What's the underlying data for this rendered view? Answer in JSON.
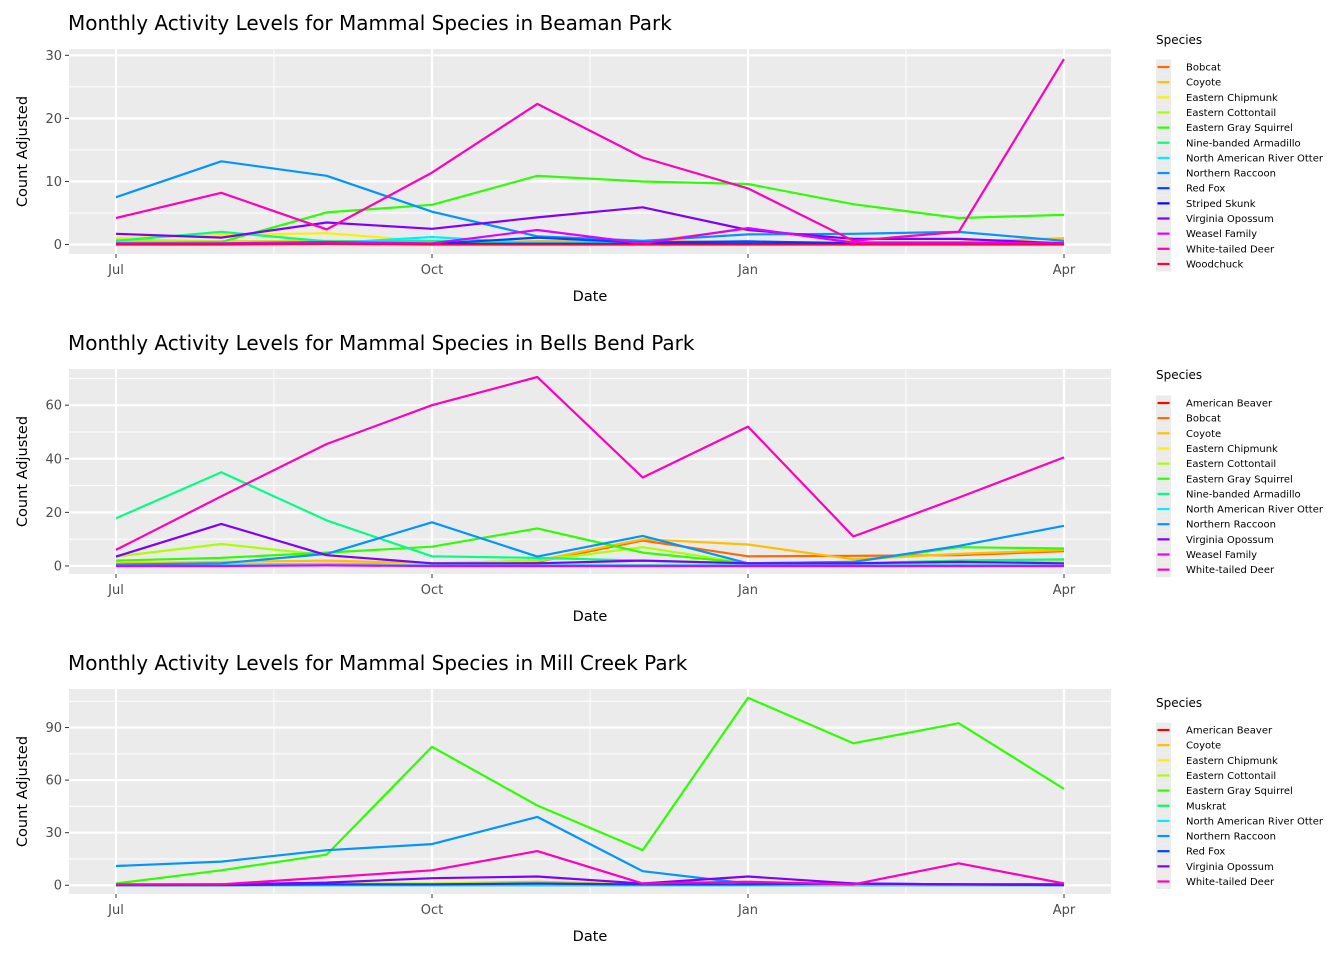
{
  "chart_data": [
    {
      "type": "line",
      "title": "Monthly Activity Levels for Mammal Species in Beaman Park",
      "xlabel": "Date",
      "ylabel": "Count Adjusted",
      "x": [
        "Jul",
        "Aug",
        "Sep",
        "Oct",
        "Nov",
        "Dec",
        "Jan",
        "Feb",
        "Mar",
        "Apr"
      ],
      "x_ticks": [
        "Jul",
        "Oct",
        "Jan",
        "Apr"
      ],
      "ylim": [
        -1.5,
        31
      ],
      "y_ticks": [
        0,
        10,
        20,
        30
      ],
      "legend_title": "Species",
      "legend_position": "right",
      "series": [
        {
          "name": "Bobcat",
          "color": "#ff6a00",
          "values": [
            0.3,
            0.3,
            0.3,
            0.3,
            0.5,
            0.5,
            0.4,
            0.3,
            0.3,
            0.3
          ]
        },
        {
          "name": "Coyote",
          "color": "#ffbf00",
          "values": [
            0.5,
            0.5,
            0.6,
            0.4,
            0.5,
            0.4,
            2.5,
            0.4,
            0.4,
            1.0
          ]
        },
        {
          "name": "Eastern Chipmunk",
          "color": "#ffee00",
          "values": [
            1.0,
            1.5,
            1.8,
            0.5,
            0.3,
            0.2,
            0.2,
            0.3,
            0.3,
            0.3
          ]
        },
        {
          "name": "Eastern Cottontail",
          "color": "#aaff00",
          "values": [
            0.8,
            0.5,
            0.5,
            0.4,
            0.3,
            0.3,
            0.3,
            0.3,
            0.3,
            0.3
          ]
        },
        {
          "name": "Eastern Gray Squirrel",
          "color": "#2cff00",
          "values": [
            0.2,
            0.4,
            5.1,
            6.3,
            10.9,
            10.0,
            9.6,
            6.4,
            4.2,
            4.7
          ]
        },
        {
          "name": "Nine-banded Armadillo",
          "color": "#00ff84",
          "values": [
            0.6,
            2.0,
            0.5,
            0.6,
            0.3,
            0.3,
            0.3,
            0.3,
            0.3,
            0.3
          ]
        },
        {
          "name": "North American River Otter",
          "color": "#00eeff",
          "values": [
            0.2,
            0.2,
            0.2,
            1.2,
            0.2,
            0.2,
            0.2,
            0.2,
            0.2,
            0.2
          ]
        },
        {
          "name": "Northern Raccoon",
          "color": "#0095ff",
          "values": [
            7.5,
            13.2,
            10.9,
            5.2,
            1.3,
            0.6,
            1.6,
            1.7,
            2.0,
            0.6
          ]
        },
        {
          "name": "Red Fox",
          "color": "#0044ff",
          "values": [
            0.1,
            0.1,
            0.1,
            0.1,
            1.1,
            0.3,
            0.5,
            0.2,
            0.2,
            0.1
          ]
        },
        {
          "name": "Striped Skunk",
          "color": "#1100ff",
          "values": [
            0.1,
            0.1,
            0.1,
            0.1,
            0.1,
            0.1,
            0.1,
            0.1,
            0.1,
            0.1
          ]
        },
        {
          "name": "Virginia Opossum",
          "color": "#8000ff",
          "values": [
            1.7,
            1.1,
            3.5,
            2.5,
            4.3,
            5.9,
            2.3,
            0.9,
            0.9,
            0.2
          ]
        },
        {
          "name": "Weasel Family",
          "color": "#e100ff",
          "values": [
            0.2,
            0.2,
            0.4,
            0.2,
            2.3,
            0.2,
            2.6,
            0.3,
            0.3,
            0.2
          ]
        },
        {
          "name": "White-tailed Deer",
          "color": "#ff00bb",
          "values": [
            4.2,
            8.2,
            2.4,
            11.4,
            22.3,
            13.8,
            8.9,
            0.6,
            2.0,
            29.4
          ]
        },
        {
          "name": "Woodchuck",
          "color": "#ff003c",
          "values": [
            0.0,
            0.0,
            0.1,
            0.0,
            0.0,
            0.0,
            0.0,
            0.0,
            0.0,
            0.0
          ]
        }
      ]
    },
    {
      "type": "line",
      "title": "Monthly Activity Levels for Mammal Species in Bells Bend Park",
      "xlabel": "Date",
      "ylabel": "Count Adjusted",
      "x": [
        "Jul",
        "Aug",
        "Sep",
        "Oct",
        "Nov",
        "Dec",
        "Jan",
        "Feb",
        "Mar",
        "Apr"
      ],
      "x_ticks": [
        "Jul",
        "Oct",
        "Jan",
        "Apr"
      ],
      "ylim": [
        -3,
        73.5
      ],
      "y_ticks": [
        0,
        20,
        40,
        60
      ],
      "legend_title": "Species",
      "legend_position": "right",
      "series": [
        {
          "name": "American Beaver",
          "color": "#ff0000",
          "values": [
            0.2,
            0.2,
            0.2,
            0.2,
            0.3,
            0.2,
            0.2,
            0.2,
            0.2,
            0.2
          ]
        },
        {
          "name": "Bobcat",
          "color": "#ff6a00",
          "values": [
            0.5,
            0.6,
            0.8,
            0.6,
            1.5,
            9.5,
            3.6,
            3.8,
            4.0,
            5.5
          ]
        },
        {
          "name": "Coyote",
          "color": "#ffbf00",
          "values": [
            1.0,
            1.5,
            2.0,
            1.0,
            2.0,
            10.0,
            8.0,
            2.5,
            4.5,
            6.0
          ]
        },
        {
          "name": "Eastern Chipmunk",
          "color": "#ffee00",
          "values": [
            0.5,
            0.5,
            0.5,
            0.5,
            0.5,
            0.5,
            0.5,
            0.5,
            0.5,
            0.5
          ]
        },
        {
          "name": "Eastern Cottontail",
          "color": "#aaff00",
          "values": [
            3.5,
            8.2,
            4.0,
            1.0,
            2.0,
            7.0,
            1.0,
            0.8,
            1.0,
            2.0
          ]
        },
        {
          "name": "Eastern Gray Squirrel",
          "color": "#2cff00",
          "values": [
            2.0,
            3.0,
            5.0,
            7.2,
            14.0,
            5.0,
            1.0,
            1.5,
            7.0,
            6.5
          ]
        },
        {
          "name": "Nine-banded Armadillo",
          "color": "#00ff84",
          "values": [
            17.8,
            35.0,
            17.0,
            3.6,
            3.0,
            2.0,
            1.0,
            1.0,
            2.0,
            2.5
          ]
        },
        {
          "name": "North American River Otter",
          "color": "#00eeff",
          "values": [
            0.3,
            0.3,
            0.3,
            0.3,
            0.3,
            0.3,
            0.3,
            0.3,
            0.3,
            0.3
          ]
        },
        {
          "name": "Northern Raccoon",
          "color": "#0095ff",
          "values": [
            0.5,
            1.0,
            4.5,
            16.3,
            3.5,
            11.2,
            1.0,
            1.5,
            7.5,
            15.0
          ]
        },
        {
          "name": "Virginia Opossum",
          "color": "#8000ff",
          "values": [
            3.5,
            15.7,
            4.0,
            1.0,
            1.0,
            2.0,
            1.0,
            1.0,
            1.5,
            1.0
          ]
        },
        {
          "name": "Weasel Family",
          "color": "#e100ff",
          "values": [
            0.0,
            0.0,
            0.2,
            0.0,
            0.0,
            0.0,
            0.0,
            0.0,
            0.0,
            0.0
          ]
        },
        {
          "name": "White-tailed Deer",
          "color": "#ff00bb",
          "values": [
            6.0,
            26.0,
            45.5,
            60.0,
            70.5,
            33.0,
            52.0,
            11.0,
            25.5,
            40.5
          ]
        }
      ]
    },
    {
      "type": "line",
      "title": "Monthly Activity Levels for Mammal Species in Mill Creek Park",
      "xlabel": "Date",
      "ylabel": "Count Adjusted",
      "x": [
        "Jul",
        "Aug",
        "Sep",
        "Oct",
        "Nov",
        "Dec",
        "Jan",
        "Feb",
        "Mar",
        "Apr"
      ],
      "x_ticks": [
        "Jul",
        "Oct",
        "Jan",
        "Apr"
      ],
      "ylim": [
        -5,
        112
      ],
      "y_ticks": [
        0,
        30,
        60,
        90
      ],
      "legend_title": "Species",
      "legend_position": "right",
      "series": [
        {
          "name": "American Beaver",
          "color": "#ff0000",
          "values": [
            0.0,
            0.0,
            0.0,
            0.0,
            0.0,
            0.0,
            0.0,
            0.0,
            0.0,
            0.0
          ]
        },
        {
          "name": "Coyote",
          "color": "#ffbf00",
          "values": [
            0.5,
            0.5,
            1.0,
            1.0,
            2.0,
            0.5,
            0.5,
            0.5,
            0.5,
            0.5
          ]
        },
        {
          "name": "Eastern Chipmunk",
          "color": "#ffee00",
          "values": [
            0.3,
            0.3,
            0.5,
            0.5,
            0.5,
            0.3,
            0.3,
            0.3,
            0.3,
            0.3
          ]
        },
        {
          "name": "Eastern Cottontail",
          "color": "#aaff00",
          "values": [
            0.5,
            0.5,
            1.0,
            1.0,
            1.0,
            0.5,
            0.5,
            0.5,
            0.5,
            0.5
          ]
        },
        {
          "name": "Eastern Gray Squirrel",
          "color": "#2cff00",
          "values": [
            1.0,
            8.5,
            17.5,
            79.0,
            45.5,
            20.0,
            107.0,
            81.0,
            92.5,
            55.0
          ]
        },
        {
          "name": "Muskrat",
          "color": "#00ff5e",
          "values": [
            0.0,
            0.0,
            0.0,
            0.0,
            0.0,
            0.0,
            0.0,
            0.0,
            0.0,
            0.0
          ]
        },
        {
          "name": "North American River Otter",
          "color": "#00eeff",
          "values": [
            0.0,
            0.0,
            0.0,
            0.0,
            0.0,
            0.0,
            0.0,
            0.0,
            0.0,
            0.0
          ]
        },
        {
          "name": "Northern Raccoon",
          "color": "#0095ff",
          "values": [
            11.0,
            13.5,
            20.0,
            23.5,
            39.0,
            8.0,
            1.0,
            1.0,
            0.5,
            0.5
          ]
        },
        {
          "name": "Red Fox",
          "color": "#0044ff",
          "values": [
            0.0,
            0.0,
            0.5,
            0.5,
            1.0,
            0.5,
            0.5,
            1.0,
            0.5,
            0.0
          ]
        },
        {
          "name": "Virginia Opossum",
          "color": "#8000ff",
          "values": [
            0.3,
            0.5,
            1.5,
            4.0,
            5.0,
            1.0,
            5.0,
            1.0,
            0.5,
            0.5
          ]
        },
        {
          "name": "White-tailed Deer",
          "color": "#ff00bb",
          "values": [
            0.5,
            0.5,
            4.5,
            8.5,
            19.5,
            1.0,
            2.0,
            0.5,
            12.5,
            1.0
          ]
        }
      ]
    }
  ]
}
